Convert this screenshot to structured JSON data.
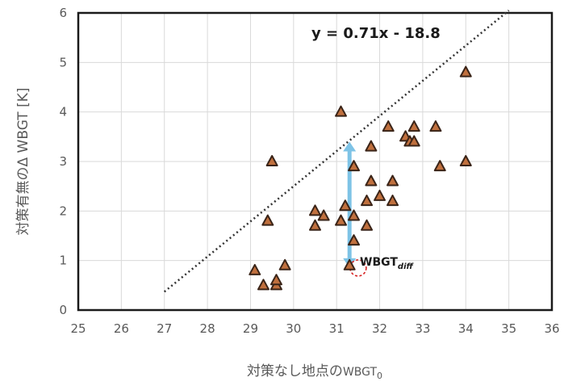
{
  "chart_data": {
    "type": "scatter",
    "title": "",
    "xlabel": "対策なし地点の",
    "xlabel_symbol": "WBGT",
    "xlabel_subscript": "0",
    "ylabel": "対策有無のΔ WBGT [K]",
    "xlim": [
      25,
      36
    ],
    "ylim": [
      0,
      6
    ],
    "xticks": [
      "25",
      "26",
      "27",
      "28",
      "29",
      "30",
      "31",
      "32",
      "33",
      "34",
      "35",
      "36"
    ],
    "yticks": [
      "0",
      "1",
      "2",
      "3",
      "4",
      "5",
      "6"
    ],
    "grid": true,
    "marker": "triangle",
    "colors": {
      "marker_fill": "#c0703e",
      "marker_edge": "#3a2418",
      "trendline": "#333333",
      "arrow": "#7ec3e6",
      "highlight_circle": "#d62020",
      "grid": "#d9d9d9"
    },
    "points": [
      {
        "x": 29.1,
        "y": 0.8
      },
      {
        "x": 29.3,
        "y": 0.5
      },
      {
        "x": 29.6,
        "y": 0.5
      },
      {
        "x": 29.6,
        "y": 0.6
      },
      {
        "x": 29.8,
        "y": 0.9
      },
      {
        "x": 29.4,
        "y": 1.8
      },
      {
        "x": 29.5,
        "y": 3.0
      },
      {
        "x": 30.5,
        "y": 1.7
      },
      {
        "x": 30.5,
        "y": 2.0
      },
      {
        "x": 30.7,
        "y": 1.9
      },
      {
        "x": 31.1,
        "y": 1.8
      },
      {
        "x": 31.2,
        "y": 2.1
      },
      {
        "x": 31.1,
        "y": 4.0
      },
      {
        "x": 31.3,
        "y": 0.9
      },
      {
        "x": 31.4,
        "y": 1.4
      },
      {
        "x": 31.4,
        "y": 1.9
      },
      {
        "x": 31.4,
        "y": 2.9
      },
      {
        "x": 31.7,
        "y": 1.7
      },
      {
        "x": 31.7,
        "y": 2.2
      },
      {
        "x": 31.8,
        "y": 2.6
      },
      {
        "x": 31.8,
        "y": 3.3
      },
      {
        "x": 32.0,
        "y": 2.3
      },
      {
        "x": 32.2,
        "y": 3.7
      },
      {
        "x": 32.3,
        "y": 2.2
      },
      {
        "x": 32.3,
        "y": 2.6
      },
      {
        "x": 32.6,
        "y": 3.5
      },
      {
        "x": 32.7,
        "y": 3.4
      },
      {
        "x": 32.8,
        "y": 3.4
      },
      {
        "x": 32.8,
        "y": 3.7
      },
      {
        "x": 33.3,
        "y": 3.7
      },
      {
        "x": 33.4,
        "y": 2.9
      },
      {
        "x": 34.0,
        "y": 3.0
      },
      {
        "x": 34.0,
        "y": 4.8
      }
    ],
    "trendline": {
      "equation": "y = 0.71x - 18.8",
      "x_start": 27.0,
      "x_end": 35.0
    },
    "annotation": {
      "text": "WBGT",
      "subscript": "diff",
      "arrow_x": 31.3,
      "arrow_y_top": 3.4,
      "arrow_y_bottom": 0.85,
      "circle_x": 31.5,
      "circle_y": 0.85
    }
  }
}
